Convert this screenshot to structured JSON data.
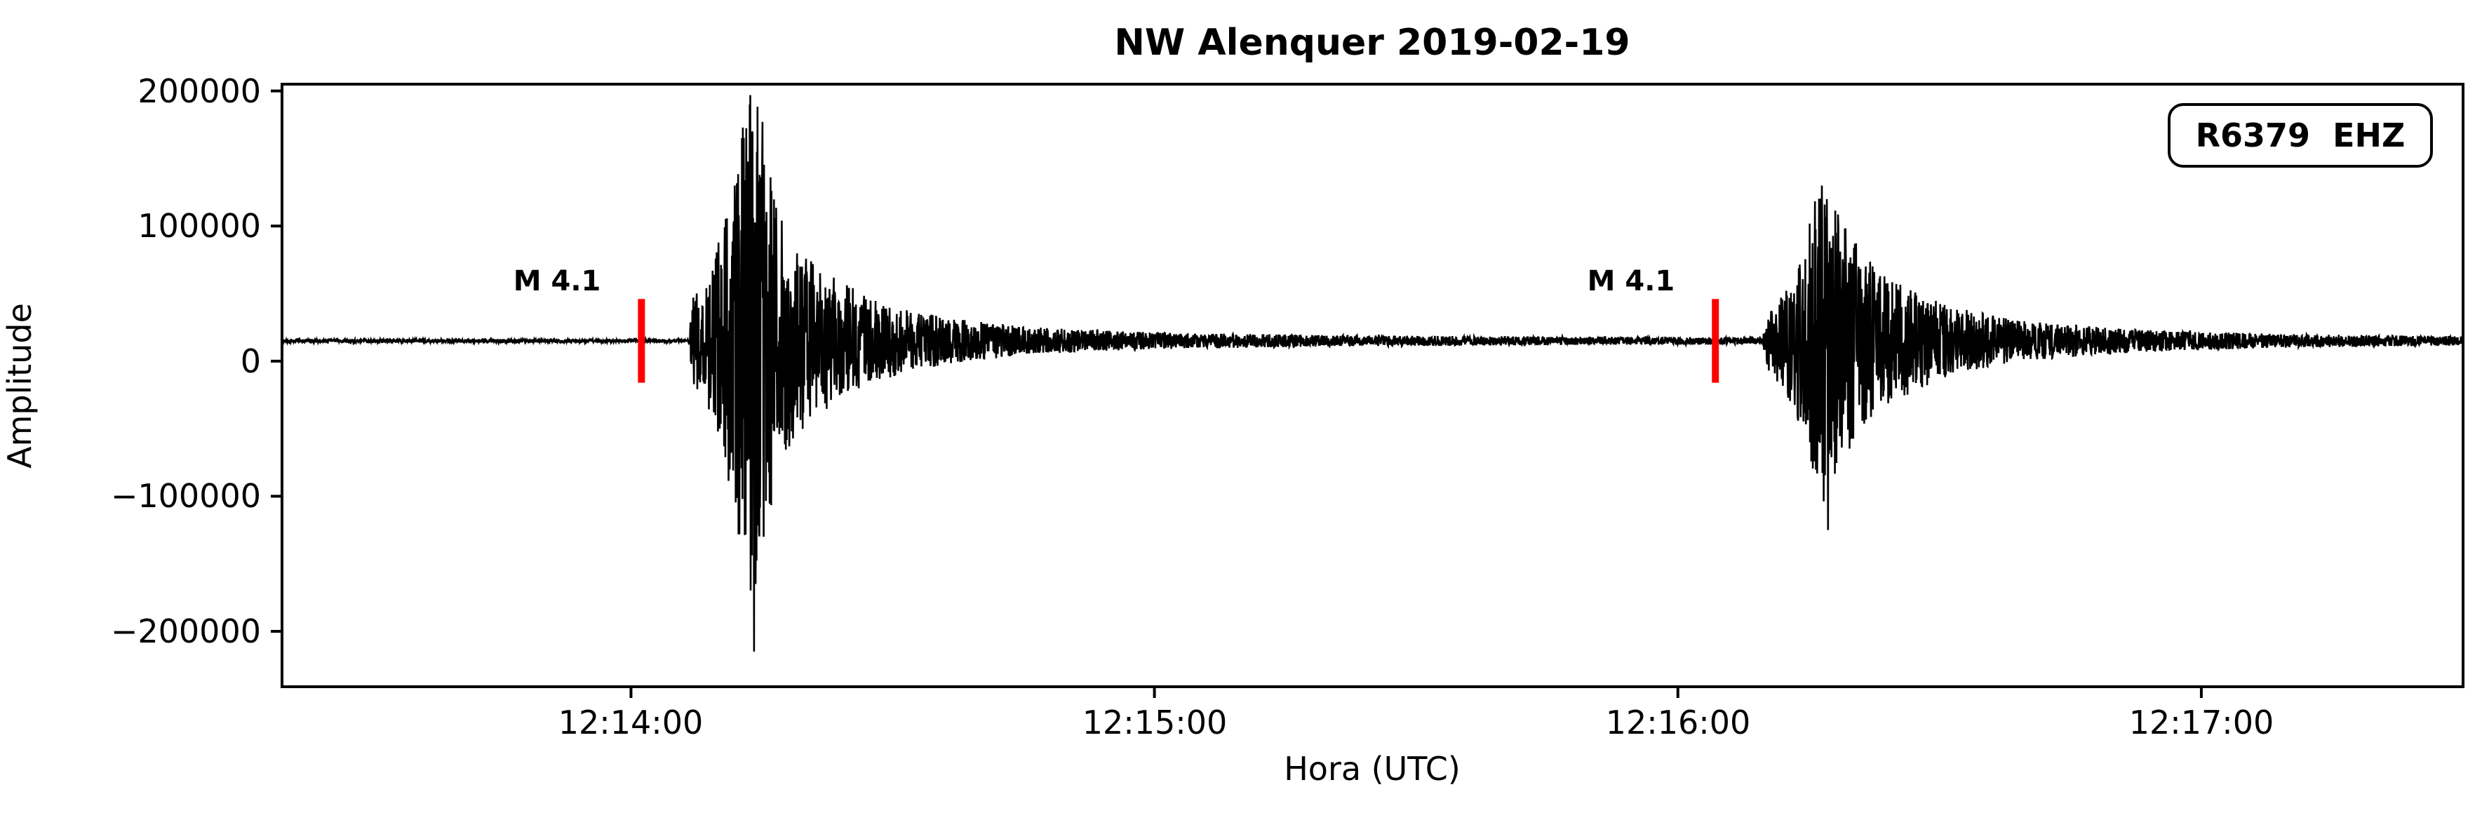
{
  "figure": {
    "background": "#ffffff",
    "trace_color": "#000000",
    "marker_color": "#ff0000"
  },
  "chart_data": {
    "type": "line",
    "title": "NW Alenquer 2019-02-19",
    "xlabel": "Hora (UTC)",
    "ylabel": "Amplitude",
    "legend": "R6379  EHZ",
    "legend_position": "upper right",
    "grid": false,
    "x_start_utc": "12:13:20",
    "x_end_utc": "12:17:30",
    "duration_s": 250,
    "ylim": [
      -241000,
      205000
    ],
    "baseline_amplitude": 15000,
    "x_ticks": [
      {
        "t": 40,
        "label": "12:14:00"
      },
      {
        "t": 100,
        "label": "12:15:00"
      },
      {
        "t": 160,
        "label": "12:16:00"
      },
      {
        "t": 220,
        "label": "12:17:00"
      }
    ],
    "y_ticks": [
      {
        "v": 200000,
        "label": "200000"
      },
      {
        "v": 100000,
        "label": "100000"
      },
      {
        "v": 0,
        "label": "0"
      },
      {
        "v": -100000,
        "label": "−100000"
      },
      {
        "v": -200000,
        "label": "−200000"
      }
    ],
    "events": [
      {
        "label": "M 4.1",
        "marker_t": 41.2,
        "onset_t": 47,
        "peak": 190000,
        "trough": -215000
      },
      {
        "label": "M 4.1",
        "marker_t": 164.3,
        "onset_t": 170,
        "peak": 130000,
        "trough": -125000
      }
    ],
    "marker_half_height": 31000,
    "envelope": [
      [
        0,
        1300
      ],
      [
        46.6,
        1300
      ],
      [
        47.1,
        32000
      ],
      [
        48.5,
        45000
      ],
      [
        50.5,
        85000
      ],
      [
        52.5,
        150000
      ],
      [
        54,
        195000
      ],
      [
        55.5,
        150000
      ],
      [
        57,
        95000
      ],
      [
        60,
        62000
      ],
      [
        64,
        45000
      ],
      [
        68,
        30000
      ],
      [
        76,
        17000
      ],
      [
        86,
        10000
      ],
      [
        100,
        6200
      ],
      [
        120,
        4200
      ],
      [
        145,
        3200
      ],
      [
        167,
        2700
      ],
      [
        169.7,
        2700
      ],
      [
        170.4,
        22000
      ],
      [
        172.5,
        40000
      ],
      [
        174.5,
        70000
      ],
      [
        176.5,
        128000
      ],
      [
        178,
        100000
      ],
      [
        181,
        66000
      ],
      [
        185,
        44000
      ],
      [
        191,
        26000
      ],
      [
        199,
        15000
      ],
      [
        212,
        8500
      ],
      [
        228,
        5200
      ],
      [
        250,
        3400
      ]
    ],
    "spikes": [
      [
        53.6,
        190000
      ],
      [
        54.1,
        -215000
      ],
      [
        52.9,
        160000
      ],
      [
        55.2,
        -130000
      ],
      [
        176.5,
        130000
      ],
      [
        177.2,
        -125000
      ]
    ]
  }
}
